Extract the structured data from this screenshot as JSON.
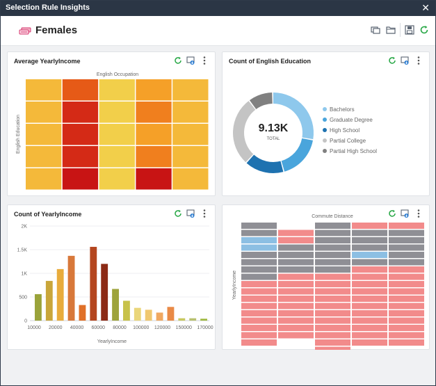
{
  "window": {
    "title": "Selection Rule Insights"
  },
  "header": {
    "title": "Females"
  },
  "cards": {
    "income_heatmap": {
      "title": "Average YearlyIncome",
      "x_axis_label": "English Occupation",
      "y_axis_label": "English Education"
    },
    "education_donut": {
      "title": "Count of English Education",
      "center_value": "9.13K",
      "center_label": "TOTAL"
    },
    "income_bars": {
      "title": "Count of YearlyIncome",
      "x_axis_label": "YearlyIncome"
    },
    "commute_heatmap": {
      "title": "",
      "x_axis_label": "Commute Distance",
      "y_axis_label": "YearlyIncome"
    }
  },
  "colors": {
    "titlebar": "#2b3645",
    "accent_green": "#27a745",
    "heat_scale": [
      "#f2cf4a",
      "#f4b93a",
      "#f5a028",
      "#f07f1e",
      "#e65a17",
      "#d42a16",
      "#c81414"
    ],
    "donut": [
      "#8ec8ec",
      "#4aa5dc",
      "#1e72b0",
      "#c4c4c4",
      "#808080"
    ]
  },
  "chart_data": [
    {
      "type": "heatmap",
      "title": "Average YearlyIncome",
      "xlabel": "English Occupation",
      "ylabel": "English Education",
      "rows": 5,
      "cols": 5,
      "levels": [
        [
          1,
          4,
          0,
          2,
          1
        ],
        [
          1,
          5,
          0,
          3,
          1
        ],
        [
          1,
          5,
          0,
          2,
          1
        ],
        [
          1,
          5,
          0,
          3,
          1
        ],
        [
          1,
          6,
          0,
          6,
          1
        ]
      ]
    },
    {
      "type": "pie",
      "title": "Count of English Education",
      "total": "9.13K",
      "categories": [
        "Bachelors",
        "Graduate Degree",
        "High School",
        "Partial College",
        "Partial High School"
      ],
      "values": [
        28,
        18,
        16,
        28,
        10
      ]
    },
    {
      "type": "bar",
      "title": "Count of YearlyIncome",
      "xlabel": "YearlyIncome",
      "ylabel": "",
      "ylim": [
        0,
        2000
      ],
      "yticks": [
        "0",
        "500",
        "1K",
        "1.5K",
        "2K"
      ],
      "xticks": [
        "10000",
        "20000",
        "40000",
        "60000",
        "80000",
        "100000",
        "120000",
        "150000",
        "170000"
      ],
      "values": [
        560,
        840,
        1090,
        1370,
        330,
        1560,
        1200,
        670,
        420,
        270,
        230,
        170,
        290,
        50,
        50,
        40
      ],
      "bar_colors": [
        "#9aa33a",
        "#c9a63a",
        "#e8ac3c",
        "#d8783a",
        "#e07028",
        "#b4461f",
        "#8c2a15",
        "#9ea33c",
        "#c8c24a",
        "#ead67a",
        "#f0c870",
        "#f0a860",
        "#e98a46",
        "#c8c860",
        "#b8c070",
        "#9fb840"
      ]
    },
    {
      "type": "heatmap",
      "title": "",
      "xlabel": "Commute Distance",
      "ylabel": "YearlyIncome",
      "cols": 5,
      "column_rows": [
        17,
        15,
        18,
        17,
        17
      ],
      "column_offsets": [
        0,
        1,
        0,
        0,
        0
      ],
      "special": {
        "0": {
          "0": "gray",
          "1": "gray",
          "2": "blue",
          "3": "blue",
          "4": "gray",
          "5": "gray",
          "6": "gray",
          "7": "gray"
        },
        "1": {
          "2": "gray",
          "3": "gray",
          "4": "gray",
          "5": "gray"
        },
        "2": {
          "0": "gray",
          "1": "gray",
          "2": "gray",
          "3": "gray",
          "4": "gray",
          "5": "gray",
          "6": "gray"
        },
        "3": {
          "1": "gray",
          "2": "gray",
          "3": "gray",
          "4": "blue",
          "5": "gray"
        },
        "4": {
          "1": "gray",
          "2": "gray",
          "3": "gray",
          "4": "gray",
          "5": "gray"
        }
      }
    }
  ]
}
